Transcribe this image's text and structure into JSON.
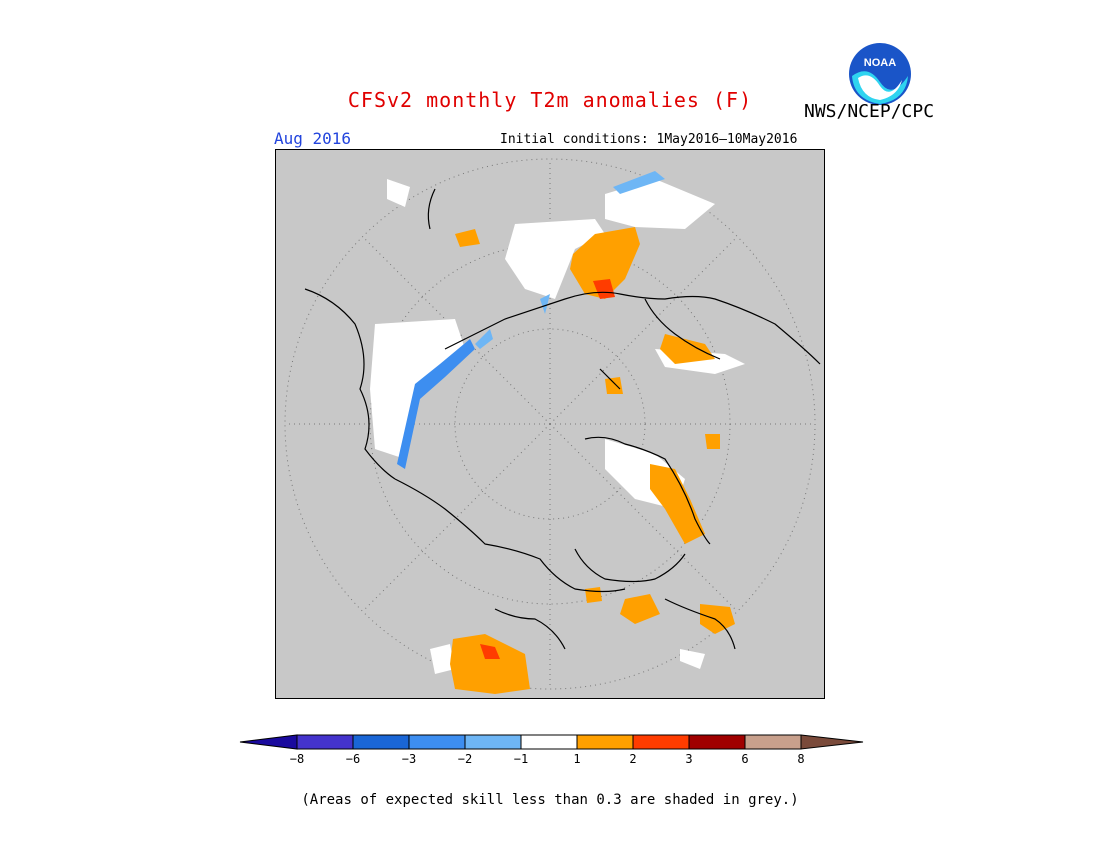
{
  "header": {
    "title": "CFSv2 monthly T2m anomalies (F)",
    "agency": "NWS/NCEP/CPC",
    "target_month": "Aug 2016",
    "initial_conditions": "Initial conditions: 1May2016—10May2016"
  },
  "logo": {
    "text": "NOAA",
    "icon": "noaa-logo-icon"
  },
  "map": {
    "projection": "north-polar-stereographic",
    "background_color": "#c8c8c8",
    "coastline_color": "#000000",
    "graticule": "dotted"
  },
  "legend": {
    "labels": [
      "−8",
      "−6",
      "−3",
      "−2",
      "−1",
      "1",
      "2",
      "3",
      "6",
      "8"
    ],
    "colors": [
      "#1a0a9e",
      "#4433cc",
      "#1a66d6",
      "#3d8ef0",
      "#6eb6f5",
      "#ffffff",
      "#ffa000",
      "#ff3c00",
      "#a00000",
      "#c8a08c",
      "#7a4a3a"
    ]
  },
  "footnote": "(Areas of expected skill less than 0.3 are shaded in grey.)"
}
